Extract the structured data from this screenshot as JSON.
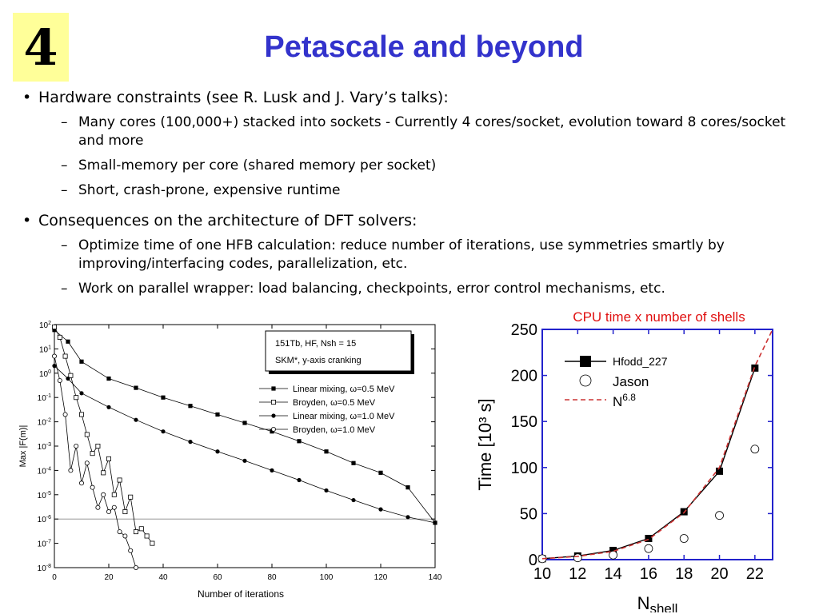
{
  "slide": {
    "number": "4",
    "title": "Petascale and beyond",
    "bullets": [
      {
        "text": "Hardware constraints (see R. Lusk and J. Vary’s talks):",
        "subs": [
          "Many cores (100,000+) stacked into sockets - Currently 4 cores/socket, evolution toward 8 cores/socket and more",
          "Small-memory per core (shared memory per socket)",
          "Short, crash-prone, expensive runtime"
        ]
      },
      {
        "text": "Consequences on the architecture of DFT solvers:",
        "subs": [
          "Optimize time of one HFB calculation: reduce number of iterations, use symmetries smartly by improving/interfacing codes, parallelization, etc.",
          "Work on parallel wrapper: load balancing, checkpoints, error control mechanisms, etc."
        ]
      }
    ]
  },
  "chart_data": [
    {
      "type": "line",
      "xlabel": "Number of iterations",
      "ylabel": "Max |F(m)|",
      "yscale": "log",
      "xlim": [
        0,
        140
      ],
      "ylim": [
        1e-08,
        100
      ],
      "xticks": [
        "0",
        "20",
        "40",
        "60",
        "80",
        "100",
        "120",
        "140"
      ],
      "yticks": [
        "10-8",
        "10-7",
        "10-6",
        "10-5",
        "10-4",
        "10-3",
        "10-2",
        "10-1",
        "100",
        "101",
        "102"
      ],
      "reference_line": 1e-06,
      "annotation_box": {
        "line1": "151Tb, HF, Nsh = 15",
        "line2": "SKM*, y-axis cranking"
      },
      "legend_position": "right",
      "series": [
        {
          "name": "Linear mixing, ω=0.5 MeV",
          "marker": "filled-square",
          "x": [
            0,
            5,
            10,
            20,
            30,
            40,
            50,
            60,
            70,
            80,
            90,
            100,
            110,
            120,
            130,
            140
          ],
          "y": [
            60,
            20,
            3,
            0.6,
            0.25,
            0.1,
            0.045,
            0.02,
            0.009,
            0.004,
            0.0016,
            0.0006,
            0.0002,
            8e-05,
            2e-05,
            7e-07
          ]
        },
        {
          "name": "Broyden, ω=0.5 MeV",
          "marker": "open-square",
          "x": [
            0,
            2,
            4,
            6,
            8,
            10,
            12,
            14,
            16,
            18,
            20,
            22,
            24,
            26,
            28,
            30,
            32,
            34,
            36
          ],
          "y": [
            80,
            30,
            5,
            0.8,
            0.1,
            0.02,
            0.003,
            0.0005,
            0.001,
            8e-05,
            0.0003,
            1e-05,
            4e-05,
            2e-06,
            8e-06,
            3e-07,
            4e-07,
            2e-07,
            1e-07
          ]
        },
        {
          "name": "Linear mixing, ω=1.0 MeV",
          "marker": "filled-circle",
          "x": [
            0,
            5,
            10,
            20,
            30,
            40,
            50,
            60,
            70,
            80,
            90,
            100,
            110,
            120,
            130,
            140
          ],
          "y": [
            2,
            0.6,
            0.15,
            0.04,
            0.012,
            0.004,
            0.0015,
            0.0006,
            0.00025,
            0.0001,
            4e-05,
            1.5e-05,
            6e-06,
            2.5e-06,
            1.2e-06,
            7e-07
          ]
        },
        {
          "name": "Broyden, ω=1.0 MeV",
          "marker": "open-circle",
          "x": [
            0,
            2,
            4,
            6,
            8,
            10,
            12,
            14,
            16,
            18,
            20,
            22,
            24,
            26,
            28,
            30
          ],
          "y": [
            5,
            0.5,
            0.02,
            0.0001,
            0.001,
            3e-05,
            0.0002,
            2e-05,
            3e-06,
            1e-05,
            2e-06,
            3e-06,
            3e-07,
            2e-07,
            5e-08,
            1e-08
          ]
        }
      ]
    },
    {
      "type": "line",
      "title": "CPU time  x  number of shells",
      "xlabel": "Nshell",
      "ylabel": "Time   [10³ s]",
      "xlim": [
        10,
        23
      ],
      "ylim": [
        0,
        250
      ],
      "xticks": [
        "10",
        "12",
        "14",
        "16",
        "18",
        "20",
        "22"
      ],
      "yticks": [
        "0",
        "50",
        "100",
        "150",
        "200",
        "250"
      ],
      "legend_position": "top-left",
      "series": [
        {
          "name": "Hfodd_227",
          "marker": "filled-square",
          "x": [
            10,
            12,
            14,
            16,
            18,
            20,
            22
          ],
          "y": [
            1,
            4,
            10,
            23,
            52,
            96,
            208
          ]
        },
        {
          "name": "Jason",
          "marker": "open-circle",
          "x": [
            10,
            12,
            14,
            16,
            18,
            20,
            22
          ],
          "y": [
            1,
            2,
            5,
            12,
            23,
            48,
            120
          ]
        },
        {
          "name": "N6.8",
          "marker": "dashed-line",
          "x": [
            10,
            12,
            14,
            16,
            18,
            20,
            22,
            23
          ],
          "y": [
            1,
            3.5,
            9,
            22,
            51,
            100,
            210,
            250
          ]
        }
      ]
    }
  ]
}
